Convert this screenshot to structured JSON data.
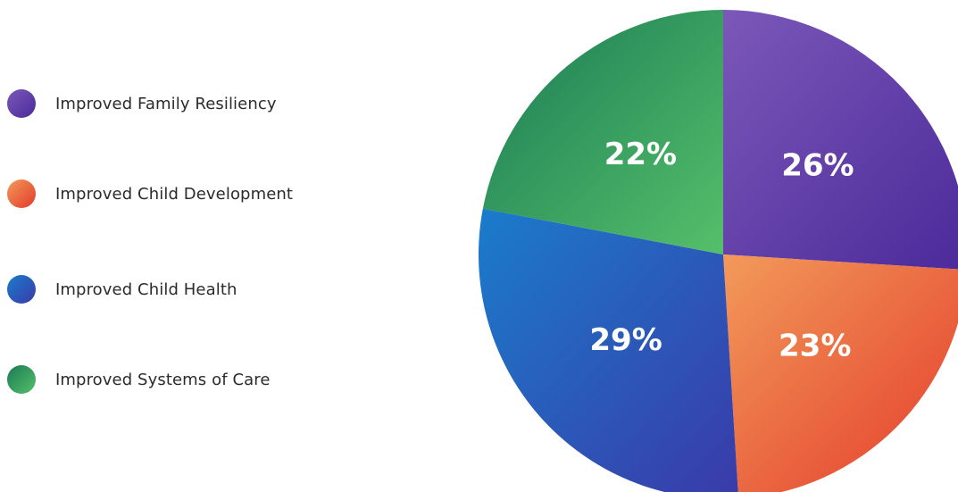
{
  "chart_data": {
    "type": "pie",
    "title": "",
    "legend_position": "left",
    "slices": [
      {
        "label": "Improved Family Resiliency",
        "value": 26,
        "display": "26%",
        "color": "#6a3fa8",
        "gradient": [
          "#7b58b8",
          "#4b2a9a"
        ]
      },
      {
        "label": "Improved Child Development",
        "value": 23,
        "display": "23%",
        "color": "#ea5a37",
        "gradient": [
          "#f29a5a",
          "#e33a2a"
        ]
      },
      {
        "label": "Improved Child Health",
        "value": 29,
        "display": "29%",
        "color": "#2a64b8",
        "gradient": [
          "#1a7ccb",
          "#3a3aa8"
        ]
      },
      {
        "label": "Improved Systems of Care",
        "value": 22,
        "display": "22%",
        "color": "#1f9a5e",
        "gradient": [
          "#1a7a55",
          "#55c06a"
        ]
      }
    ]
  }
}
